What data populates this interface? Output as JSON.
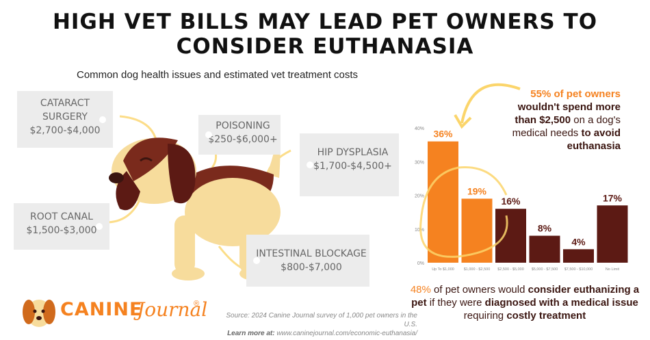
{
  "header": {
    "title_line1": "HIGH VET BILLS MAY LEAD PET OWNERS TO",
    "title_line2": "CONSIDER EUTHANASIA",
    "subtitle": "Common dog health issues and estimated vet treatment costs"
  },
  "conditions": [
    {
      "name_line1": "CATARACT",
      "name_line2": "SURGERY",
      "cost": "$2,700-$4,000"
    },
    {
      "name_line1": "POISONING",
      "name_line2": "",
      "cost": "$250-$6,000+"
    },
    {
      "name_line1": "HIP DYSPLASIA",
      "name_line2": "",
      "cost": "$1,700-$4,500+"
    },
    {
      "name_line1": "ROOT CANAL",
      "name_line2": "",
      "cost": "$1,500-$3,000"
    },
    {
      "name_line1": "INTESTINAL BLOCKAGE",
      "name_line2": "",
      "cost": "$800-$7,000"
    }
  ],
  "callout": {
    "highlight": "55% of pet owners",
    "line2": "wouldn't spend more",
    "line3a": "than $2,500",
    "line3b": " on a dog's",
    "line4a": "medical needs ",
    "line4b": "to avoid",
    "line5": "euthanasia"
  },
  "note": {
    "highlight": "48%",
    "part1": " of pet owners would ",
    "bold1": "consider euthanizing a pet",
    "part2": " if they were ",
    "bold2": "diagnosed with a medical issue",
    "part3": " requiring ",
    "bold3": "costly treatment"
  },
  "footer": {
    "source": "Source: 2024 Canine Journal survey of 1,000 pet owners in the U.S.",
    "learn_label": "Learn more at:",
    "learn_url": "www.caninejournal.com/economic-euthanasia/",
    "logo_main": "CANINE",
    "logo_script": "Journal",
    "logo_reg": "®"
  },
  "colors": {
    "orange": "#f58220",
    "brown": "#5c1a14",
    "tag_bg": "#ececec",
    "accent_yellow": "#fbd56b"
  },
  "chart_data": {
    "type": "bar",
    "categories": [
      "Up To $1,000",
      "$1,000 - $2,500",
      "$2,500 - $5,000",
      "$5,000 - $7,500",
      "$7,500 - $10,000",
      "No Limit"
    ],
    "values": [
      36,
      19,
      16,
      8,
      4,
      17
    ],
    "value_labels": [
      "36%",
      "19%",
      "16%",
      "8%",
      "4%",
      "17%"
    ],
    "bar_colors": [
      "#f58220",
      "#f58220",
      "#5c1a14",
      "#5c1a14",
      "#5c1a14",
      "#5c1a14"
    ],
    "label_colors": [
      "#f58220",
      "#f58220",
      "#5c1a14",
      "#5c1a14",
      "#5c1a14",
      "#5c1a14"
    ],
    "yticks": [
      "0%",
      "10%",
      "20%",
      "30%",
      "40%"
    ],
    "ylim": [
      0,
      40
    ],
    "grid": false
  }
}
